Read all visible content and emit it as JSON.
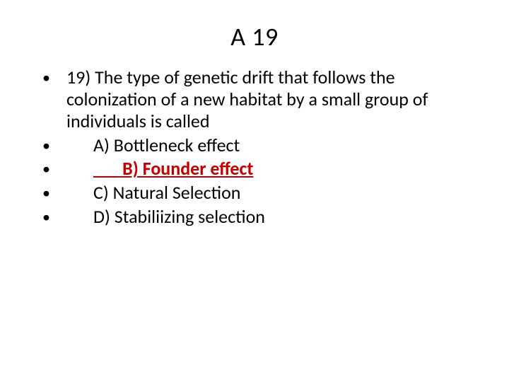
{
  "slide": {
    "title": "A 19",
    "question": "19) The type of genetic drift that follows the colonization of a new habitat by a small group of individuals is called",
    "options": {
      "a": "A) Bottleneck effect",
      "b": "B) Founder effect ",
      "c": "C) Natural Selection",
      "d": "D) Stabiliizing selection"
    },
    "answer_key": "b",
    "colors": {
      "text": "#000000",
      "highlight": "#c00000",
      "background": "#ffffff"
    },
    "font": {
      "title_size_pt": 36,
      "body_size_pt": 26,
      "family": "Calibri"
    }
  }
}
